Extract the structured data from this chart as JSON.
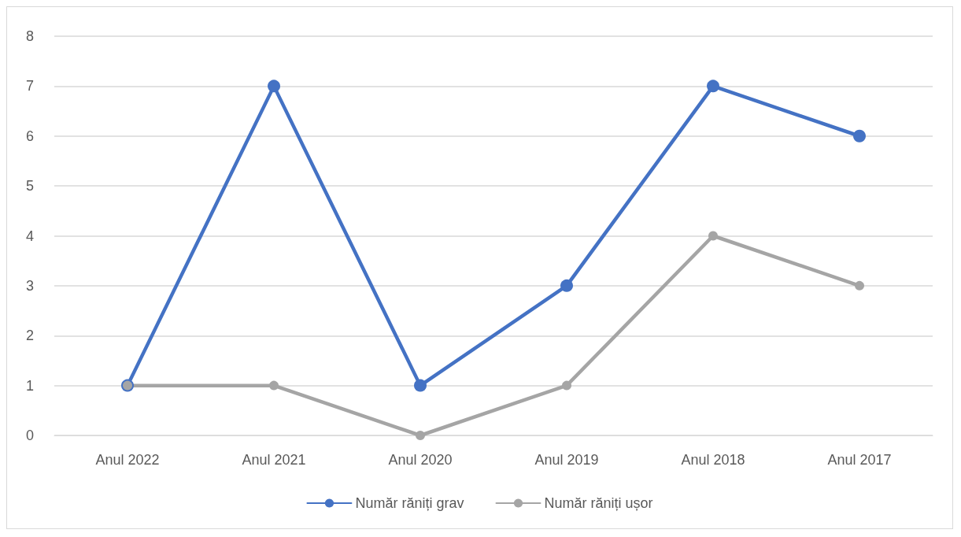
{
  "chart_data": {
    "type": "line",
    "categories": [
      "Anul 2022",
      "Anul 2021",
      "Anul 2020",
      "Anul 2019",
      "Anul 2018",
      "Anul 2017"
    ],
    "series": [
      {
        "name": "Număr răniți grav",
        "color": "#4472c4",
        "values": [
          1,
          7,
          1,
          3,
          7,
          6
        ]
      },
      {
        "name": "Număr răniți ușor",
        "color": "#a5a5a5",
        "values": [
          1,
          1,
          0,
          1,
          4,
          3
        ]
      }
    ],
    "ylim": [
      0,
      8
    ],
    "yticks": [
      0,
      1,
      2,
      3,
      4,
      5,
      6,
      7,
      8
    ],
    "grid": "y",
    "legend": "bottom",
    "marker": "circle",
    "line_style": "solid"
  }
}
